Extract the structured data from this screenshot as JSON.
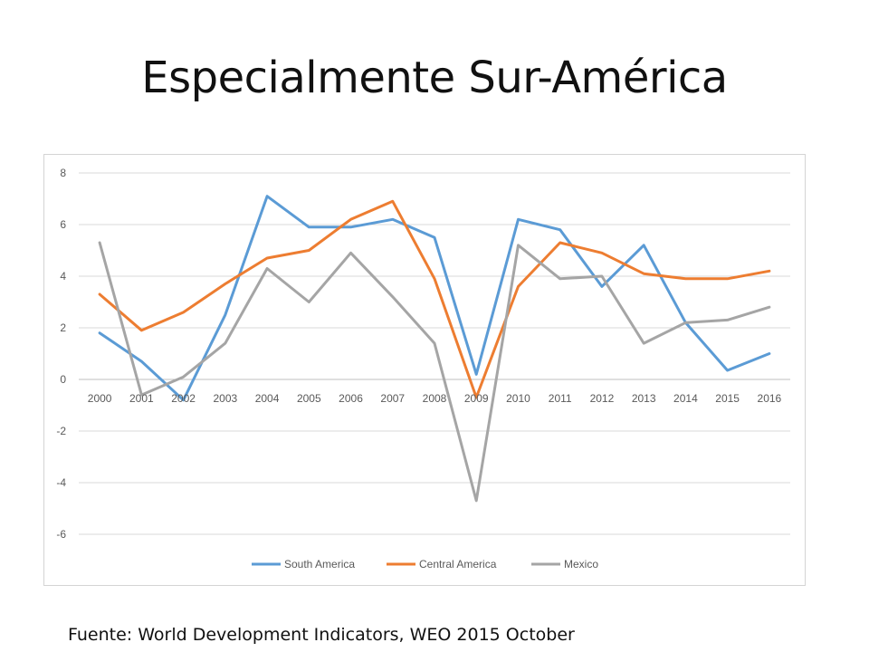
{
  "slide": {
    "title": "Especialmente Sur-América",
    "source": "Fuente: World Development Indicators, WEO 2015 October"
  },
  "chart_data": {
    "type": "line",
    "title": "",
    "xlabel": "",
    "ylabel": "",
    "x": [
      "2000",
      "2001",
      "2002",
      "2003",
      "2004",
      "2005",
      "2006",
      "2007",
      "2008",
      "2009",
      "2010",
      "2011",
      "2012",
      "2013",
      "2014",
      "2015",
      "2016"
    ],
    "ylim": [
      -6,
      8
    ],
    "yticks": [
      "8",
      "6",
      "4",
      "2",
      "0",
      "-2",
      "-4",
      "-6"
    ],
    "grid": true,
    "legend_position": "bottom",
    "series": [
      {
        "name": "South America",
        "color": "#5B9BD5",
        "values": [
          1.8,
          0.7,
          -0.8,
          2.5,
          7.1,
          5.9,
          5.9,
          6.2,
          5.5,
          0.2,
          6.2,
          5.8,
          3.6,
          5.2,
          2.2,
          0.35,
          1.0
        ]
      },
      {
        "name": "Central America",
        "color": "#ED7D31",
        "values": [
          3.3,
          1.9,
          2.6,
          3.7,
          4.7,
          5.0,
          6.2,
          6.9,
          3.9,
          -0.7,
          3.6,
          5.3,
          4.9,
          4.1,
          3.9,
          3.9,
          4.2
        ]
      },
      {
        "name": "Mexico",
        "color": "#A5A5A5",
        "values": [
          5.3,
          -0.6,
          0.1,
          1.4,
          4.3,
          3.0,
          4.9,
          3.2,
          1.4,
          -4.7,
          5.2,
          3.9,
          4.0,
          1.4,
          2.2,
          2.3,
          2.8
        ]
      }
    ]
  }
}
